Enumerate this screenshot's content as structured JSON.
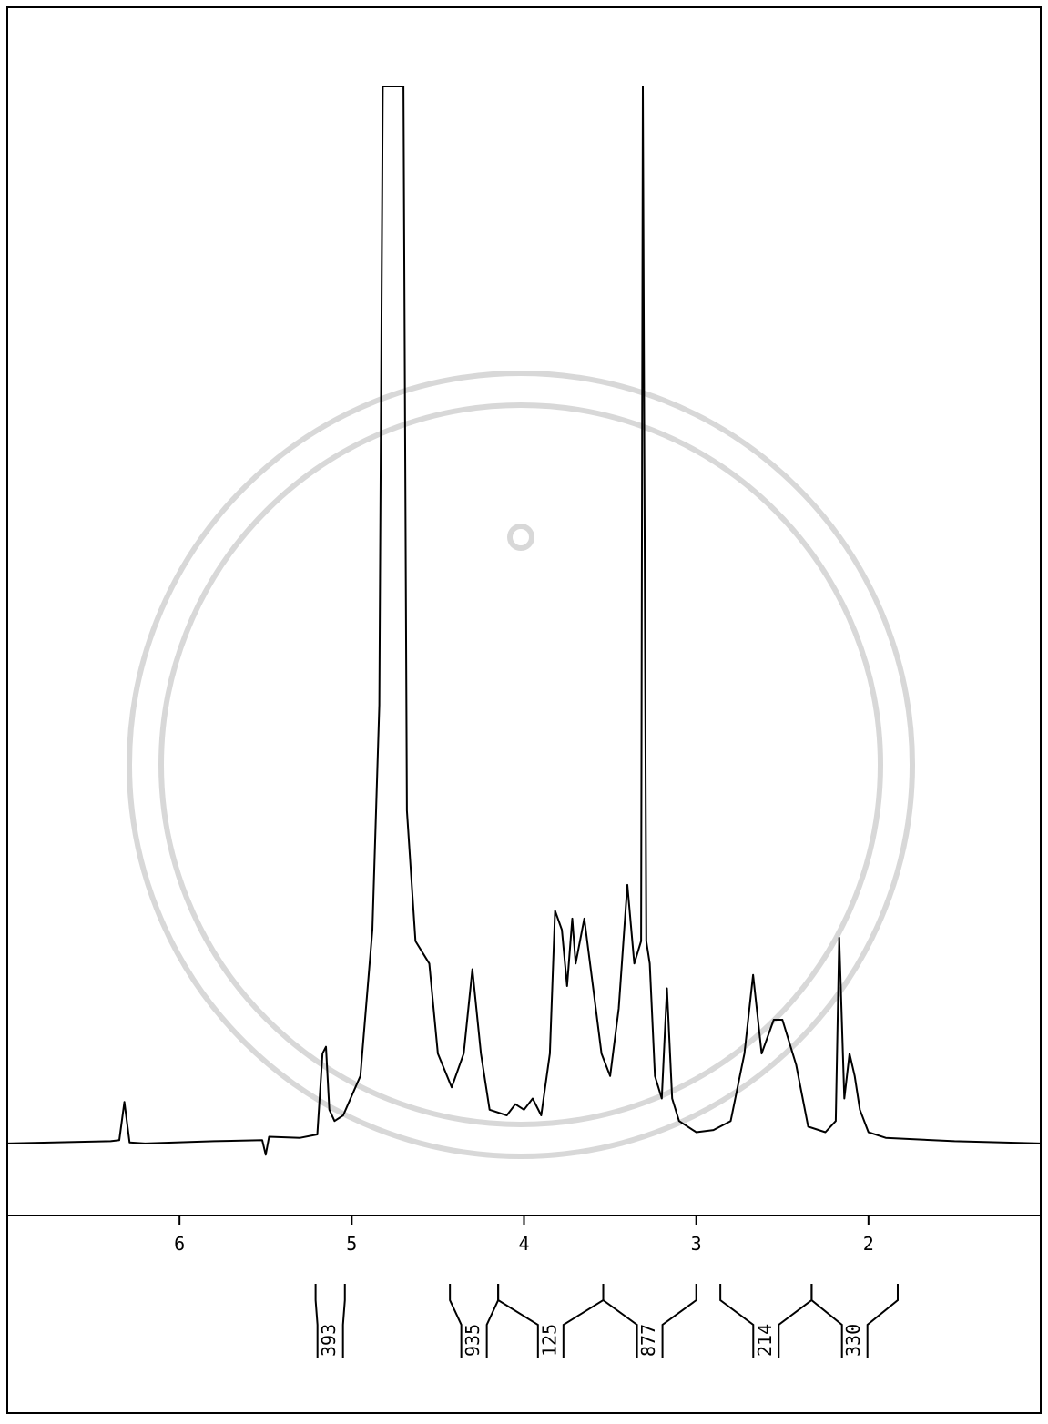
{
  "chart_data": {
    "type": "line",
    "color": "#000000",
    "x": [
      7.0,
      6.4,
      6.35,
      6.32,
      6.29,
      6.2,
      5.8,
      5.52,
      5.5,
      5.48,
      5.3,
      5.2,
      5.17,
      5.15,
      5.13,
      5.1,
      5.05,
      4.95,
      4.88,
      4.84,
      4.82,
      4.7,
      4.68,
      4.63,
      4.55,
      4.5,
      4.42,
      4.35,
      4.3,
      4.25,
      4.2,
      4.1,
      4.05,
      4.0,
      3.95,
      3.9,
      3.85,
      3.82,
      3.78,
      3.75,
      3.72,
      3.7,
      3.65,
      3.6,
      3.55,
      3.5,
      3.45,
      3.4,
      3.36,
      3.32,
      3.31,
      3.29,
      3.27,
      3.24,
      3.2,
      3.17,
      3.14,
      3.1,
      3.0,
      2.9,
      2.8,
      2.72,
      2.67,
      2.62,
      2.55,
      2.5,
      2.42,
      2.35,
      2.25,
      2.19,
      2.17,
      2.14,
      2.11,
      2.08,
      2.05,
      2.0,
      1.9,
      1.5,
      1.0
    ],
    "values": [
      6,
      6.2,
      6.3,
      9.7,
      6.1,
      6,
      6.2,
      6.3,
      5,
      6.6,
      6.5,
      6.8,
      14,
      14.6,
      9,
      8,
      8.5,
      12,
      25,
      45,
      100,
      100,
      35.6,
      24,
      22,
      14,
      11,
      14,
      21.5,
      14,
      9,
      8.5,
      9.5,
      9,
      10,
      8.5,
      14,
      26.7,
      25,
      20,
      26,
      22,
      26,
      20,
      14,
      12,
      18,
      29,
      22,
      24,
      100,
      24,
      22,
      12,
      10,
      19.8,
      10,
      8,
      7,
      7.2,
      8,
      14,
      21,
      14,
      17,
      17,
      13,
      7.5,
      7,
      8,
      24.3,
      10,
      14,
      12,
      9,
      7,
      6.5,
      6.2,
      6
    ],
    "xlim": [
      7,
      1
    ],
    "xticks": [
      6,
      5,
      4,
      3,
      2
    ],
    "ylim": [
      0,
      100
    ],
    "integrals": [
      {
        "value": 393,
        "range": [
          5.21,
          5.04
        ]
      },
      {
        "value": 935,
        "range": [
          4.43,
          4.15
        ]
      },
      {
        "value": 125,
        "range": [
          4.15,
          3.54
        ]
      },
      {
        "value": 877,
        "range": [
          3.54,
          3.0
        ]
      },
      {
        "value": 214,
        "range": [
          2.86,
          2.33
        ]
      },
      {
        "value": 330,
        "range": [
          2.33,
          1.83
        ]
      }
    ]
  }
}
